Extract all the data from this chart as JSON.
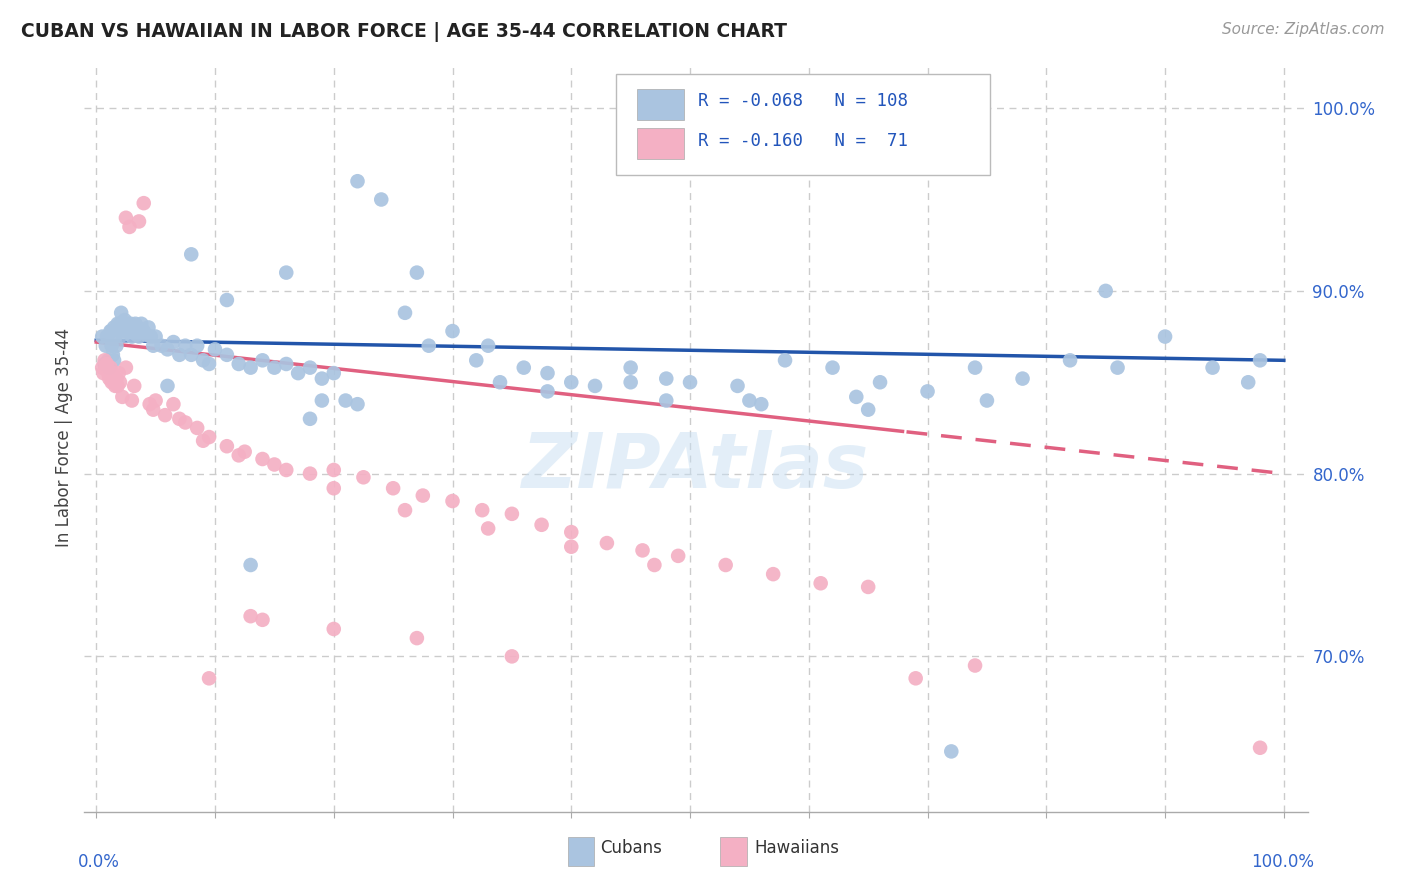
{
  "title": "CUBAN VS HAWAIIAN IN LABOR FORCE | AGE 35-44 CORRELATION CHART",
  "source": "Source: ZipAtlas.com",
  "ylabel": "In Labor Force | Age 35-44",
  "ytick_vals": [
    1.0,
    0.9,
    0.8,
    0.7
  ],
  "legend_cubans_R": "-0.068",
  "legend_cubans_N": "108",
  "legend_hawaiians_R": "-0.160",
  "legend_hawaiians_N": "71",
  "cuban_color": "#aac4e0",
  "hawaiian_color": "#f4b0c4",
  "cuban_line_color": "#2255aa",
  "hawaiian_line_color": "#e06080",
  "background_color": "#ffffff",
  "grid_color": "#cccccc",
  "cuban_x": [
    0.005,
    0.007,
    0.008,
    0.009,
    0.01,
    0.011,
    0.012,
    0.013,
    0.013,
    0.014,
    0.015,
    0.015,
    0.016,
    0.017,
    0.018,
    0.019,
    0.02,
    0.021,
    0.022,
    0.023,
    0.024,
    0.025,
    0.026,
    0.027,
    0.028,
    0.029,
    0.03,
    0.031,
    0.032,
    0.033,
    0.034,
    0.035,
    0.036,
    0.038,
    0.04,
    0.042,
    0.044,
    0.046,
    0.048,
    0.05,
    0.055,
    0.06,
    0.065,
    0.07,
    0.075,
    0.08,
    0.085,
    0.09,
    0.095,
    0.1,
    0.11,
    0.12,
    0.13,
    0.14,
    0.15,
    0.16,
    0.17,
    0.18,
    0.19,
    0.2,
    0.22,
    0.24,
    0.26,
    0.28,
    0.3,
    0.32,
    0.34,
    0.36,
    0.38,
    0.4,
    0.42,
    0.45,
    0.48,
    0.5,
    0.54,
    0.58,
    0.62,
    0.66,
    0.7,
    0.74,
    0.78,
    0.82,
    0.86,
    0.9,
    0.94,
    0.97,
    0.33,
    0.27,
    0.19,
    0.13,
    0.08,
    0.06,
    0.11,
    0.16,
    0.21,
    0.45,
    0.55,
    0.65,
    0.75,
    0.85,
    0.18,
    0.22,
    0.38,
    0.48,
    0.56,
    0.64,
    0.72,
    0.98
  ],
  "cuban_y": [
    0.875,
    0.86,
    0.87,
    0.875,
    0.862,
    0.858,
    0.878,
    0.87,
    0.878,
    0.865,
    0.88,
    0.862,
    0.875,
    0.87,
    0.882,
    0.878,
    0.882,
    0.888,
    0.88,
    0.876,
    0.884,
    0.878,
    0.882,
    0.88,
    0.878,
    0.882,
    0.875,
    0.88,
    0.878,
    0.882,
    0.876,
    0.88,
    0.875,
    0.882,
    0.878,
    0.876,
    0.88,
    0.875,
    0.87,
    0.875,
    0.87,
    0.868,
    0.872,
    0.865,
    0.87,
    0.865,
    0.87,
    0.862,
    0.86,
    0.868,
    0.865,
    0.86,
    0.858,
    0.862,
    0.858,
    0.86,
    0.855,
    0.858,
    0.852,
    0.855,
    0.96,
    0.95,
    0.888,
    0.87,
    0.878,
    0.862,
    0.85,
    0.858,
    0.855,
    0.85,
    0.848,
    0.858,
    0.852,
    0.85,
    0.848,
    0.862,
    0.858,
    0.85,
    0.845,
    0.858,
    0.852,
    0.862,
    0.858,
    0.875,
    0.858,
    0.85,
    0.87,
    0.91,
    0.84,
    0.75,
    0.92,
    0.848,
    0.895,
    0.91,
    0.84,
    0.85,
    0.84,
    0.835,
    0.84,
    0.9,
    0.83,
    0.838,
    0.845,
    0.84,
    0.838,
    0.842,
    0.648,
    0.862
  ],
  "hawaiian_x": [
    0.005,
    0.006,
    0.007,
    0.008,
    0.009,
    0.01,
    0.011,
    0.012,
    0.013,
    0.014,
    0.015,
    0.016,
    0.017,
    0.018,
    0.019,
    0.02,
    0.022,
    0.025,
    0.028,
    0.032,
    0.036,
    0.04,
    0.045,
    0.05,
    0.058,
    0.065,
    0.075,
    0.085,
    0.095,
    0.11,
    0.125,
    0.14,
    0.16,
    0.18,
    0.2,
    0.225,
    0.25,
    0.275,
    0.3,
    0.325,
    0.35,
    0.375,
    0.4,
    0.43,
    0.46,
    0.49,
    0.53,
    0.57,
    0.61,
    0.65,
    0.025,
    0.03,
    0.048,
    0.07,
    0.09,
    0.12,
    0.15,
    0.2,
    0.26,
    0.33,
    0.4,
    0.47,
    0.14,
    0.2,
    0.27,
    0.35,
    0.69,
    0.74,
    0.13,
    0.095,
    0.98
  ],
  "hawaiian_y": [
    0.858,
    0.855,
    0.862,
    0.858,
    0.86,
    0.855,
    0.852,
    0.858,
    0.85,
    0.855,
    0.852,
    0.848,
    0.852,
    0.848,
    0.855,
    0.85,
    0.842,
    0.94,
    0.935,
    0.848,
    0.938,
    0.948,
    0.838,
    0.84,
    0.832,
    0.838,
    0.828,
    0.825,
    0.82,
    0.815,
    0.812,
    0.808,
    0.802,
    0.8,
    0.802,
    0.798,
    0.792,
    0.788,
    0.785,
    0.78,
    0.778,
    0.772,
    0.768,
    0.762,
    0.758,
    0.755,
    0.75,
    0.745,
    0.74,
    0.738,
    0.858,
    0.84,
    0.835,
    0.83,
    0.818,
    0.81,
    0.805,
    0.792,
    0.78,
    0.77,
    0.76,
    0.75,
    0.72,
    0.715,
    0.71,
    0.7,
    0.688,
    0.695,
    0.722,
    0.688,
    0.65
  ]
}
